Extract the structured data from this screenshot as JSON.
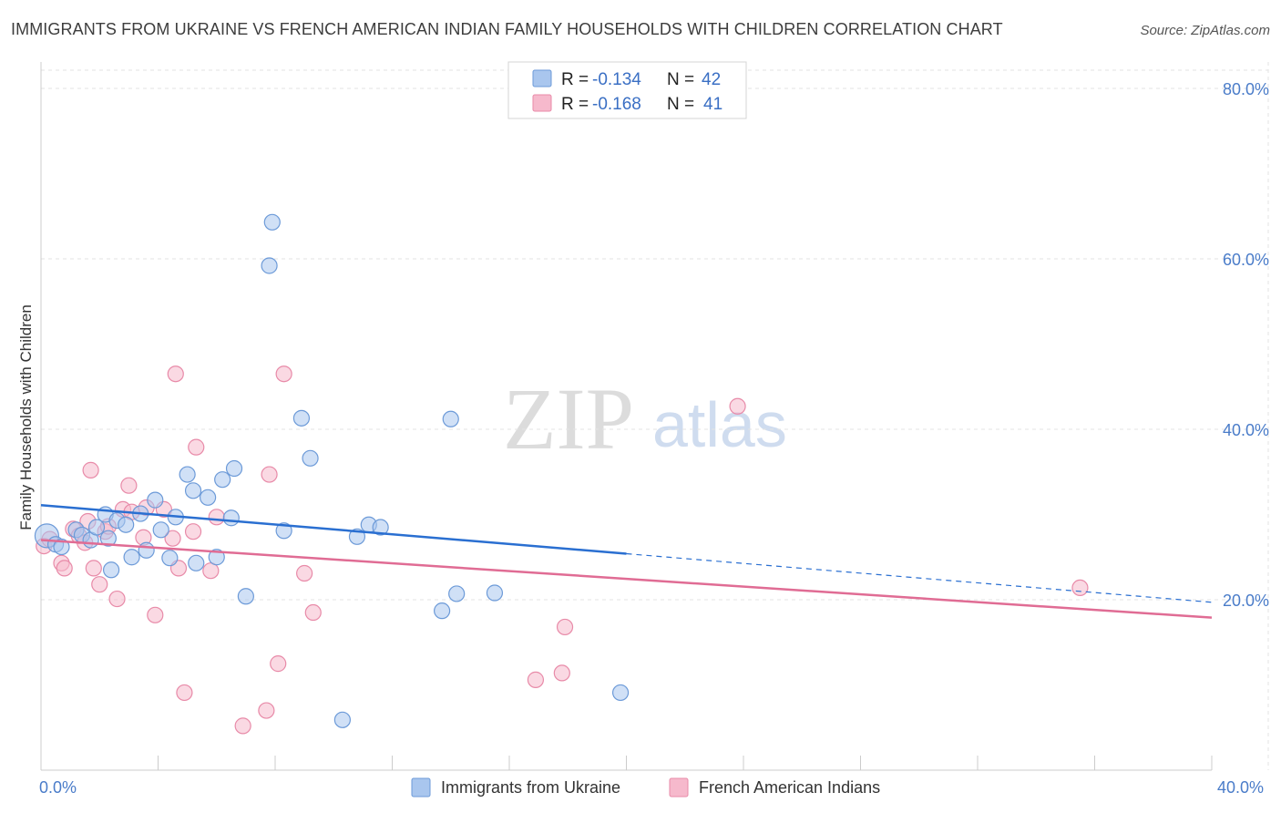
{
  "header": {
    "title": "IMMIGRANTS FROM UKRAINE VS FRENCH AMERICAN INDIAN FAMILY HOUSEHOLDS WITH CHILDREN CORRELATION CHART",
    "source": "Source: ZipAtlas.com"
  },
  "watermark": {
    "zip": "ZIP",
    "atlas": "atlas"
  },
  "legend": {
    "r_label": "R =",
    "n_label": "N =",
    "series0": {
      "r": "-0.134",
      "n": "42"
    },
    "series1": {
      "r": "-0.168",
      "n": "41"
    }
  },
  "colors": {
    "blue_fill": "#a9c6ee",
    "blue_stroke": "#6c9ad8",
    "blue_line": "#2a6fd1",
    "pink_fill": "#f6b9cc",
    "pink_stroke": "#e88aa8",
    "pink_line": "#e06c94",
    "axis_label": "#4a7cc9",
    "grid": "#e3e3e3"
  },
  "chart_data": {
    "type": "scatter",
    "title": "IMMIGRANTS FROM UKRAINE VS FRENCH AMERICAN INDIAN FAMILY HOUSEHOLDS WITH CHILDREN CORRELATION CHART",
    "xlabel": "",
    "ylabel": "Family Households with Children",
    "xlim": [
      0,
      40
    ],
    "ylim": [
      0,
      80
    ],
    "x_ticks": [
      "0.0%",
      "40.0%"
    ],
    "y_ticks": [
      "20.0%",
      "40.0%",
      "60.0%",
      "80.0%"
    ],
    "y_tick_values": [
      20,
      40,
      60,
      80
    ],
    "grid": true,
    "legend_position": "top-center",
    "series": [
      {
        "name": "Immigrants from Ukraine",
        "r": -0.134,
        "n": 42,
        "trend": {
          "x0": 0,
          "y0": 31.1,
          "x1": 20,
          "y1": 25.4,
          "dashed_to_x": 40,
          "dashed_to_y": 19.7
        },
        "points": [
          [
            0.2,
            27.5
          ],
          [
            0.5,
            26.5
          ],
          [
            0.7,
            26.2
          ],
          [
            1.2,
            28.2
          ],
          [
            1.4,
            27.6
          ],
          [
            1.7,
            27.0
          ],
          [
            1.9,
            28.5
          ],
          [
            2.2,
            30.0
          ],
          [
            2.3,
            27.2
          ],
          [
            2.4,
            23.5
          ],
          [
            2.6,
            29.3
          ],
          [
            2.9,
            28.8
          ],
          [
            3.1,
            25.0
          ],
          [
            3.4,
            30.1
          ],
          [
            3.6,
            25.8
          ],
          [
            3.9,
            31.7
          ],
          [
            4.1,
            28.2
          ],
          [
            4.4,
            24.9
          ],
          [
            4.6,
            29.7
          ],
          [
            5.0,
            34.7
          ],
          [
            5.2,
            32.8
          ],
          [
            5.3,
            24.3
          ],
          [
            5.7,
            32.0
          ],
          [
            6.0,
            25.0
          ],
          [
            6.2,
            34.1
          ],
          [
            6.5,
            29.6
          ],
          [
            6.6,
            35.4
          ],
          [
            7.0,
            20.4
          ],
          [
            7.8,
            59.2
          ],
          [
            7.9,
            64.3
          ],
          [
            8.3,
            28.1
          ],
          [
            8.9,
            41.3
          ],
          [
            9.2,
            36.6
          ],
          [
            10.3,
            5.9
          ],
          [
            10.8,
            27.4
          ],
          [
            11.2,
            28.8
          ],
          [
            11.6,
            28.5
          ],
          [
            13.7,
            18.7
          ],
          [
            14.0,
            41.2
          ],
          [
            14.2,
            20.7
          ],
          [
            15.5,
            20.8
          ],
          [
            19.8,
            9.1
          ]
        ]
      },
      {
        "name": "French American Indians",
        "r": -0.168,
        "n": 41,
        "trend": {
          "x0": 0,
          "y0": 27.0,
          "x1": 40,
          "y1": 17.9
        },
        "points": [
          [
            0.1,
            26.3
          ],
          [
            0.3,
            27.1
          ],
          [
            0.7,
            24.3
          ],
          [
            0.8,
            23.7
          ],
          [
            1.1,
            28.3
          ],
          [
            1.3,
            27.5
          ],
          [
            1.5,
            26.7
          ],
          [
            1.6,
            29.2
          ],
          [
            1.7,
            35.2
          ],
          [
            1.8,
            23.7
          ],
          [
            2.0,
            21.8
          ],
          [
            2.2,
            28.0
          ],
          [
            2.3,
            28.6
          ],
          [
            2.6,
            20.1
          ],
          [
            2.8,
            30.6
          ],
          [
            3.0,
            33.4
          ],
          [
            3.1,
            30.3
          ],
          [
            3.5,
            27.3
          ],
          [
            3.6,
            30.8
          ],
          [
            3.9,
            18.2
          ],
          [
            4.2,
            30.6
          ],
          [
            4.5,
            27.2
          ],
          [
            4.6,
            46.5
          ],
          [
            4.7,
            23.7
          ],
          [
            4.9,
            9.1
          ],
          [
            5.2,
            28.0
          ],
          [
            5.3,
            37.9
          ],
          [
            5.8,
            23.4
          ],
          [
            6.0,
            29.7
          ],
          [
            6.9,
            5.2
          ],
          [
            7.7,
            7.0
          ],
          [
            7.8,
            34.7
          ],
          [
            8.1,
            12.5
          ],
          [
            8.3,
            46.5
          ],
          [
            9.0,
            23.1
          ],
          [
            9.3,
            18.5
          ],
          [
            16.9,
            10.6
          ],
          [
            17.8,
            11.4
          ],
          [
            17.9,
            16.8
          ],
          [
            23.8,
            42.7
          ],
          [
            35.5,
            21.4
          ]
        ]
      }
    ]
  },
  "bottom_legend": {
    "items": [
      {
        "label": "Immigrants from Ukraine"
      },
      {
        "label": "French American Indians"
      }
    ]
  }
}
